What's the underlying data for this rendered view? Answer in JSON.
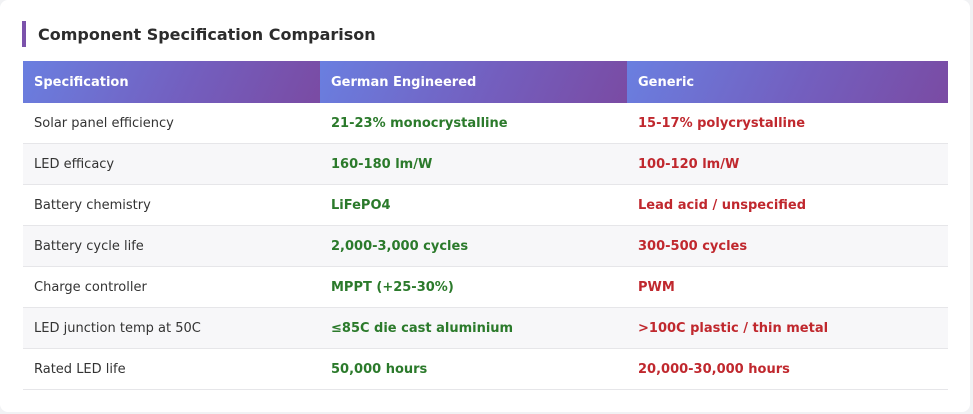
{
  "title": "Component Specification Comparison",
  "colors": {
    "accent": "#7b52ab",
    "header_gradient_start": "#6a7fe0",
    "header_gradient_end": "#7a4ba3",
    "german_text": "#2b7a2b",
    "generic_text": "#c0282e"
  },
  "table": {
    "headers": [
      "Specification",
      "German Engineered",
      "Generic"
    ],
    "rows": [
      {
        "spec": "Solar panel efficiency",
        "german": "21-23% monocrystalline",
        "generic": "15-17% polycrystalline"
      },
      {
        "spec": "LED efficacy",
        "german": "160-180 lm/W",
        "generic": "100-120 lm/W"
      },
      {
        "spec": "Battery chemistry",
        "german": "LiFePO4",
        "generic": "Lead acid / unspecified"
      },
      {
        "spec": "Battery cycle life",
        "german": "2,000-3,000 cycles",
        "generic": "300-500 cycles"
      },
      {
        "spec": "Charge controller",
        "german": "MPPT (+25-30%)",
        "generic": "PWM"
      },
      {
        "spec": "LED junction temp at 50C",
        "german": "≤85C die cast aluminium",
        "generic": ">100C plastic / thin metal"
      },
      {
        "spec": "Rated LED life",
        "german": "50,000 hours",
        "generic": "20,000-30,000 hours"
      }
    ]
  }
}
